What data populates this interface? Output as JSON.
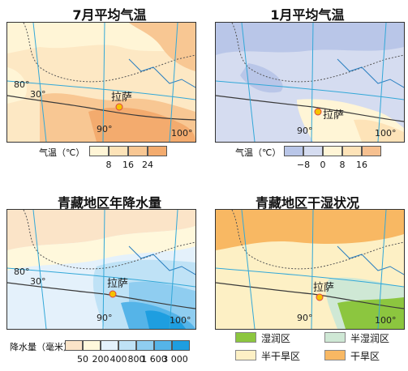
{
  "maps": [
    {
      "title": "7月平均气温",
      "city": "拉萨",
      "lon_labels": [
        "80°",
        "90°",
        "100°"
      ],
      "lat_labels": [
        "30°"
      ],
      "legend": {
        "name": "气温（℃）",
        "colors": [
          "#fff5d6",
          "#fde3b8",
          "#f8c793",
          "#f3ab6e"
        ],
        "ticks": [
          "8",
          "16",
          "24"
        ]
      }
    },
    {
      "title": "1月平均气温",
      "city": "拉萨",
      "lon_labels": [
        "90°",
        "100°"
      ],
      "lat_labels": [],
      "legend": {
        "name": "气温（℃）",
        "colors": [
          "#b9c6e8",
          "#d5dcf0",
          "#fff5d6",
          "#fde3b8",
          "#f6c090"
        ],
        "ticks": [
          "−8",
          "0",
          "8",
          "16"
        ]
      }
    },
    {
      "title": "青藏地区年降水量",
      "city": "拉萨",
      "lon_labels": [
        "80°",
        "90°",
        "100°"
      ],
      "lat_labels": [
        "30°"
      ],
      "legend": {
        "name": "降水量（毫米）",
        "colors": [
          "#fbe4c8",
          "#fff8dc",
          "#e4f1fb",
          "#bfe2f6",
          "#8fcdf0",
          "#55b4e8",
          "#1e9ee0"
        ],
        "ticks": [
          "50",
          "200",
          "400",
          "800",
          "1 600",
          "3 000"
        ]
      }
    },
    {
      "title": "青藏地区干湿状况",
      "city": "拉萨",
      "lon_labels": [
        "90°",
        "100°"
      ],
      "lat_labels": [],
      "legend": {
        "items": [
          {
            "label": "湿润区",
            "color": "#8cc63f"
          },
          {
            "label": "半湿润区",
            "color": "#cfe8d5"
          },
          {
            "label": "半干旱区",
            "color": "#fdf0c5"
          },
          {
            "label": "干旱区",
            "color": "#f8b863"
          }
        ]
      }
    }
  ]
}
